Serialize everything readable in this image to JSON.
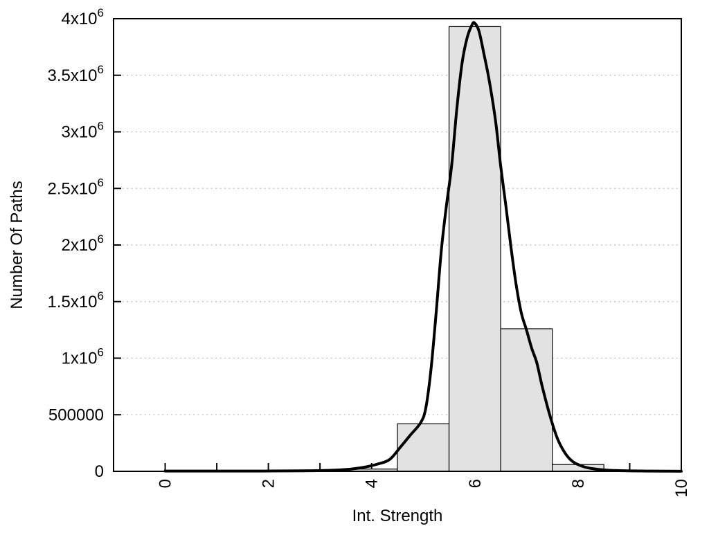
{
  "figure": {
    "background": "#ffffff"
  },
  "chart_data": {
    "type": "bar",
    "subtype": "histogram-with-fit-curve",
    "title": "",
    "xlabel": "Int. Strength",
    "ylabel": "Number Of Paths",
    "xlim": [
      -1,
      10
    ],
    "ylim": [
      0,
      4000000
    ],
    "x_major_ticks": [
      0,
      2,
      4,
      6,
      8,
      10
    ],
    "x_minor_ticks": [
      1,
      3,
      5,
      7,
      9
    ],
    "x_tick_labels": [
      "0",
      "2",
      "4",
      "6",
      "8",
      "10"
    ],
    "x_tick_label_rotation": -90,
    "y_ticks": [
      {
        "value": 0,
        "label": "0"
      },
      {
        "value": 500000,
        "label": "500000"
      },
      {
        "value": 1000000,
        "label": "1x10",
        "exp": "6"
      },
      {
        "value": 1500000,
        "label": "1.5x10",
        "exp": "6"
      },
      {
        "value": 2000000,
        "label": "2x10",
        "exp": "6"
      },
      {
        "value": 2500000,
        "label": "2.5x10",
        "exp": "6"
      },
      {
        "value": 3000000,
        "label": "3x10",
        "exp": "6"
      },
      {
        "value": 3500000,
        "label": "3.5x10",
        "exp": "6"
      },
      {
        "value": 4000000,
        "label": "4x10",
        "exp": "6"
      }
    ],
    "grid": {
      "horizontal": "dotted",
      "vertical": "none",
      "color": "#b5b5b5"
    },
    "frame_color": "#000000",
    "text_color": "#000000",
    "histogram": {
      "bin_edges": [
        3.5,
        4.5,
        5.5,
        6.5,
        7.5,
        8.5
      ],
      "bin_centers": [
        4,
        5,
        6,
        7,
        8
      ],
      "values": [
        20000,
        420000,
        3930000,
        1260000,
        60000
      ],
      "fill": "#e2e2e2",
      "stroke": "#000000"
    },
    "fit_curve": {
      "color": "#000000",
      "stroke_width": 4,
      "points": [
        [
          0.0,
          2000
        ],
        [
          0.6,
          2000
        ],
        [
          1.2,
          2000
        ],
        [
          1.8,
          2500
        ],
        [
          2.4,
          3500
        ],
        [
          2.8,
          5000
        ],
        [
          3.2,
          9000
        ],
        [
          3.5,
          16000
        ],
        [
          3.8,
          32000
        ],
        [
          4.1,
          62000
        ],
        [
          4.35,
          105000
        ],
        [
          4.55,
          210000
        ],
        [
          4.75,
          320000
        ],
        [
          4.95,
          430000
        ],
        [
          5.05,
          560000
        ],
        [
          5.15,
          900000
        ],
        [
          5.25,
          1400000
        ],
        [
          5.35,
          1950000
        ],
        [
          5.45,
          2350000
        ],
        [
          5.55,
          2700000
        ],
        [
          5.65,
          3200000
        ],
        [
          5.75,
          3600000
        ],
        [
          5.85,
          3830000
        ],
        [
          5.95,
          3950000
        ],
        [
          6.0,
          3960000
        ],
        [
          6.08,
          3890000
        ],
        [
          6.18,
          3680000
        ],
        [
          6.28,
          3450000
        ],
        [
          6.4,
          3100000
        ],
        [
          6.5,
          2700000
        ],
        [
          6.6,
          2350000
        ],
        [
          6.7,
          1980000
        ],
        [
          6.8,
          1650000
        ],
        [
          6.9,
          1400000
        ],
        [
          7.0,
          1250000
        ],
        [
          7.1,
          1090000
        ],
        [
          7.2,
          960000
        ],
        [
          7.3,
          760000
        ],
        [
          7.45,
          500000
        ],
        [
          7.6,
          290000
        ],
        [
          7.75,
          160000
        ],
        [
          7.9,
          85000
        ],
        [
          8.1,
          42000
        ],
        [
          8.3,
          22000
        ],
        [
          8.55,
          11000
        ],
        [
          8.9,
          5000
        ],
        [
          9.3,
          2500
        ],
        [
          9.7,
          1500
        ],
        [
          10.0,
          1000
        ]
      ]
    }
  }
}
